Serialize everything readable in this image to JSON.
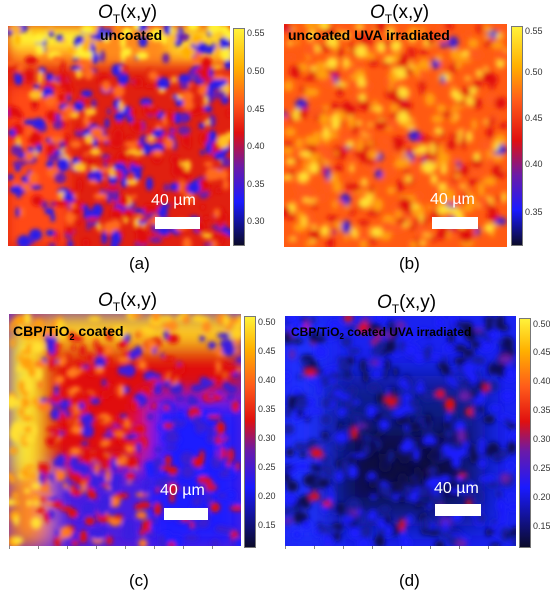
{
  "panels": [
    {
      "id": "a",
      "title_symbol": "O",
      "title_sub": "T",
      "title_args": "(x,y)",
      "inner_label_pre": "uncoated",
      "inner_label_sub": "",
      "inner_label_post": "",
      "scale_text": "40 µm",
      "panel_label": "(a)",
      "colorbar_ticks": [
        "0.55",
        "0.50",
        "0.45",
        "0.40",
        "0.35",
        "0.30"
      ]
    },
    {
      "id": "b",
      "title_symbol": "O",
      "title_sub": "T",
      "title_args": "(x,y)",
      "inner_label_pre": "uncoated UVA irradiated",
      "inner_label_sub": "",
      "inner_label_post": "",
      "scale_text": "40 µm",
      "panel_label": "(b)",
      "colorbar_ticks": [
        "0.55",
        "0.50",
        "0.45",
        "0.40",
        "0.35"
      ]
    },
    {
      "id": "c",
      "title_symbol": "O",
      "title_sub": "T",
      "title_args": "(x,y)",
      "inner_label_pre": "CBP/TiO",
      "inner_label_sub": "2",
      "inner_label_post": " coated",
      "scale_text": "40 µm",
      "panel_label": "(c)",
      "colorbar_ticks": [
        "0.50",
        "0.45",
        "0.40",
        "0.35",
        "0.30",
        "0.25",
        "0.20",
        "0.15"
      ]
    },
    {
      "id": "d",
      "title_symbol": "O",
      "title_sub": "T",
      "title_args": "(x,y)",
      "inner_label_pre": "CBP/TiO",
      "inner_label_sub": "2",
      "inner_label_post": " coated UVA irradiated",
      "scale_text": "40 µm",
      "panel_label": "(d)",
      "colorbar_ticks": [
        "0.50",
        "0.45",
        "0.40",
        "0.35",
        "0.30",
        "0.25",
        "0.20",
        "0.15"
      ]
    }
  ],
  "colorscale": [
    "#0b0b2a",
    "#1a1aff",
    "#6b1aa8",
    "#e01010",
    "#ff5a1a",
    "#ffb000",
    "#fff23a"
  ]
}
